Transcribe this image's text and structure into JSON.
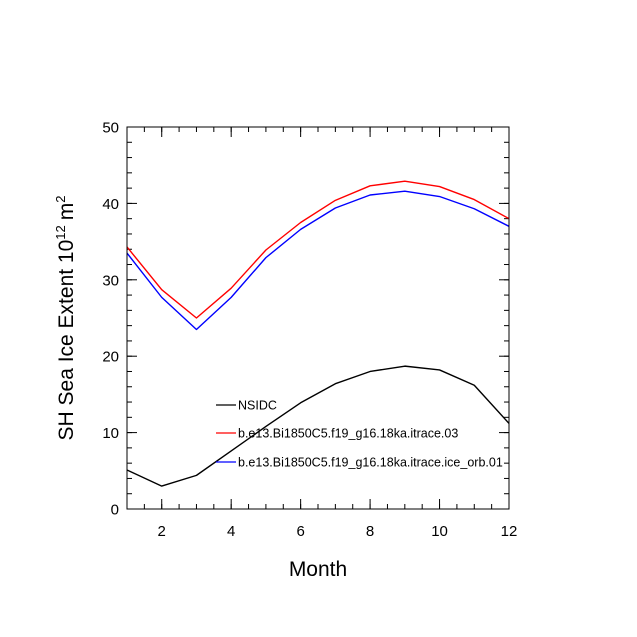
{
  "chart_data": {
    "type": "line",
    "title": "",
    "xlabel": "Month",
    "ylabel": "SH Sea Ice Extent 10",
    "ylabel_sup": "12",
    "ylabel_unit": "m",
    "ylabel_unit_sup": "2",
    "xlim": [
      1,
      12
    ],
    "ylim": [
      0,
      50
    ],
    "xticks": [
      2,
      4,
      6,
      8,
      10,
      12
    ],
    "yticks": [
      0,
      10,
      20,
      30,
      40,
      50
    ],
    "grid": false,
    "legend_position": "lower-center",
    "x": [
      1,
      2,
      3,
      4,
      5,
      6,
      7,
      8,
      9,
      10,
      11,
      12
    ],
    "series": [
      {
        "name": "NSIDC",
        "color": "#000000",
        "values": [
          5.1,
          3.0,
          4.4,
          7.6,
          10.8,
          13.9,
          16.4,
          18.0,
          18.7,
          18.2,
          16.2,
          11.2
        ]
      },
      {
        "name": "b.e13.Bi1850C5.f19_g16.18ka.itrace.03",
        "color": "#ff0000",
        "values": [
          34.3,
          28.7,
          25.0,
          28.9,
          33.9,
          37.5,
          40.4,
          42.3,
          42.9,
          42.2,
          40.5,
          38.0
        ]
      },
      {
        "name": "b.e13.Bi1850C5.f19_g16.18ka.itrace.ice_orb.01",
        "color": "#0000ff",
        "values": [
          33.5,
          27.7,
          23.5,
          27.7,
          32.9,
          36.6,
          39.4,
          41.1,
          41.6,
          40.9,
          39.3,
          37.0
        ]
      }
    ]
  }
}
